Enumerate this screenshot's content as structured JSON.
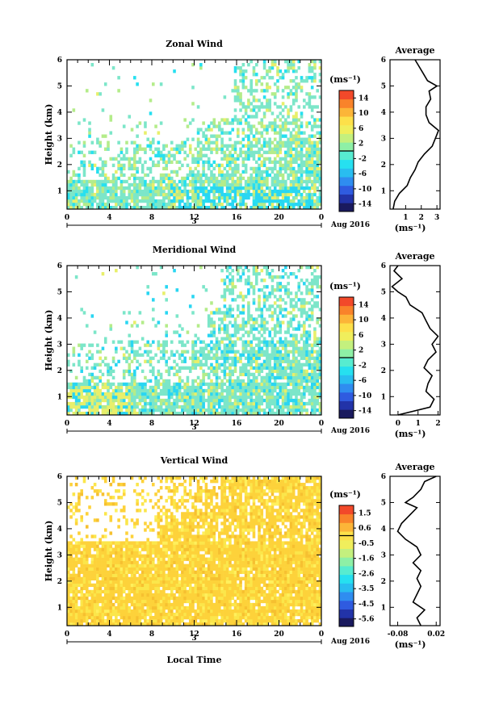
{
  "footer": {
    "xlabel": "Local Time"
  },
  "colors": {
    "neg": "#1fc8e8",
    "zero": "#7ce6c9",
    "pos_light": "#b4ec8a",
    "pos_warm": "#ffd23a"
  },
  "chart_data": [
    {
      "type": "heatmap",
      "title": "Zonal Wind",
      "ylabel": "Height (km)",
      "xticks": [
        "0",
        "4",
        "8",
        "12",
        "16",
        "20",
        "0"
      ],
      "date_label": "Aug 2016",
      "day_label": "3",
      "xlim": [
        0,
        24
      ],
      "ylim": [
        0.3,
        6
      ],
      "yticks": [
        1,
        2,
        3,
        4,
        5,
        6
      ],
      "colorbar": {
        "unit": "(ms⁻¹)",
        "ticks": [
          "14",
          "10",
          "6",
          "2",
          "-2",
          "-6",
          "-10",
          "-14"
        ],
        "range": [
          -16,
          16
        ]
      },
      "profile": {
        "title": "Average",
        "xlabel": "(ms⁻¹)",
        "xticks": [
          "1",
          "2",
          "3"
        ],
        "xlim": [
          0,
          3.2
        ],
        "heights": [
          0.3,
          0.6,
          0.9,
          1.2,
          1.5,
          1.8,
          2.1,
          2.4,
          2.7,
          3.0,
          3.3,
          3.6,
          3.9,
          4.2,
          4.5,
          4.8,
          5.0,
          5.2,
          5.5,
          5.8,
          6.0
        ],
        "values": [
          0.2,
          0.3,
          0.6,
          1.1,
          1.3,
          1.6,
          1.8,
          2.2,
          2.7,
          2.9,
          3.1,
          2.5,
          2.3,
          2.3,
          2.6,
          2.5,
          3.0,
          2.4,
          2.1,
          1.8,
          1.6
        ]
      }
    },
    {
      "type": "heatmap",
      "title": "Meridional Wind",
      "ylabel": "Height (km)",
      "xticks": [
        "0",
        "4",
        "8",
        "12",
        "16",
        "20",
        "0"
      ],
      "date_label": "Aug 2016",
      "day_label": "3",
      "xlim": [
        0,
        24
      ],
      "ylim": [
        0.3,
        6
      ],
      "yticks": [
        1,
        2,
        3,
        4,
        5,
        6
      ],
      "colorbar": {
        "unit": "(ms⁻¹)",
        "ticks": [
          "14",
          "10",
          "6",
          "2",
          "-2",
          "-6",
          "-10",
          "-14"
        ],
        "range": [
          -16,
          16
        ]
      },
      "profile": {
        "title": "Average",
        "xlabel": "(ms⁻¹)",
        "xticks": [
          "0",
          "1",
          "2"
        ],
        "xlim": [
          -0.4,
          2.1
        ],
        "heights": [
          0.3,
          0.6,
          0.9,
          1.2,
          1.5,
          1.8,
          2.1,
          2.4,
          2.7,
          3.0,
          3.3,
          3.6,
          3.9,
          4.2,
          4.5,
          4.8,
          5.0,
          5.2,
          5.5,
          5.8,
          6.0
        ],
        "values": [
          0.0,
          1.6,
          1.8,
          1.4,
          1.5,
          1.7,
          1.3,
          1.5,
          1.9,
          1.7,
          2.0,
          1.6,
          1.4,
          1.2,
          0.6,
          0.4,
          0.0,
          -0.3,
          0.2,
          -0.2,
          0.0
        ]
      }
    },
    {
      "type": "heatmap",
      "title": "Vertical Wind",
      "ylabel": "Height (km)",
      "xticks": [
        "0",
        "4",
        "8",
        "12",
        "16",
        "20",
        "0"
      ],
      "date_label": "Aug 2016",
      "day_label": "3",
      "xlim": [
        0,
        24
      ],
      "ylim": [
        0.3,
        6
      ],
      "yticks": [
        1,
        2,
        3,
        4,
        5,
        6
      ],
      "colorbar": {
        "unit": "(ms⁻¹)",
        "ticks": [
          "1.5",
          "0.6",
          "-0.5",
          "-1.6",
          "-2.6",
          "-3.5",
          "-4.5",
          "-5.6"
        ],
        "range": [
          -6,
          2
        ]
      },
      "profile": {
        "title": "Average",
        "xlabel": "(ms⁻¹)",
        "xticks": [
          "-0.08",
          "0.02"
        ],
        "xlim": [
          -0.1,
          0.03
        ],
        "heights": [
          0.3,
          0.6,
          0.9,
          1.2,
          1.5,
          1.8,
          2.1,
          2.4,
          2.7,
          3.0,
          3.3,
          3.6,
          3.9,
          4.2,
          4.5,
          4.8,
          5.0,
          5.2,
          5.5,
          5.8,
          6.0
        ],
        "values": [
          -0.02,
          -0.03,
          -0.01,
          -0.04,
          -0.03,
          -0.02,
          -0.03,
          -0.02,
          -0.04,
          -0.02,
          -0.03,
          -0.06,
          -0.08,
          -0.07,
          -0.05,
          -0.03,
          -0.06,
          -0.04,
          -0.02,
          -0.01,
          0.02
        ]
      }
    }
  ]
}
